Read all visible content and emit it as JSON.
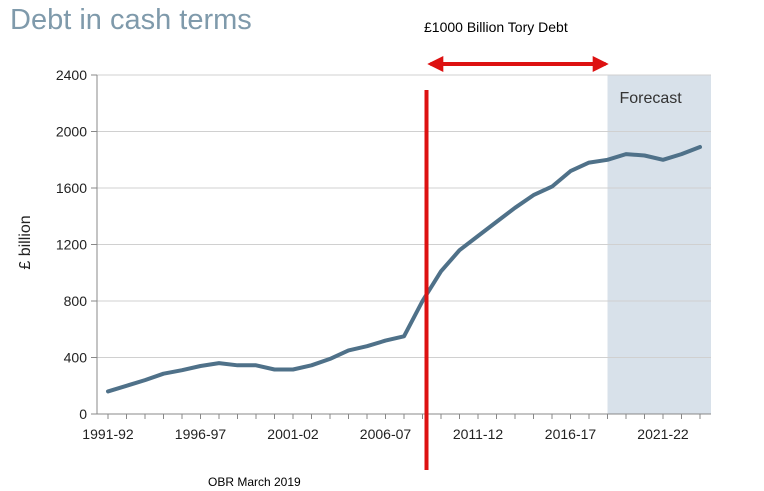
{
  "header": {
    "title": "Debt in cash terms"
  },
  "annotation": {
    "arrow_label": "£1000 Billion Tory Debt"
  },
  "footer": {
    "source": "OBR March 2019"
  },
  "colors": {
    "line": "#4f7189",
    "forecast_band": "#d8e1ea",
    "marker": "#dd1111",
    "title": "#7f9aab"
  },
  "chart_data": {
    "type": "line",
    "title": "Debt in cash terms",
    "xlabel": "",
    "ylabel": "£ billion",
    "ylim": [
      0,
      2400
    ],
    "yticks": [
      0,
      400,
      800,
      1200,
      1600,
      2000,
      2400
    ],
    "xtick_labels": [
      "1991-92",
      "1996-97",
      "2001-02",
      "2006-07",
      "2011-12",
      "2016-17",
      "2021-22"
    ],
    "grid": true,
    "forecast_label": "Forecast",
    "forecast_start": "2018-19",
    "marker_line_at": "2008-09",
    "categories": [
      "1991-92",
      "1992-93",
      "1993-94",
      "1994-95",
      "1995-96",
      "1996-97",
      "1997-98",
      "1998-99",
      "1999-00",
      "2000-01",
      "2001-02",
      "2002-03",
      "2003-04",
      "2004-05",
      "2005-06",
      "2006-07",
      "2007-08",
      "2008-09",
      "2009-10",
      "2010-11",
      "2011-12",
      "2012-13",
      "2013-14",
      "2014-15",
      "2015-16",
      "2016-17",
      "2017-18",
      "2018-19",
      "2019-20",
      "2020-21",
      "2021-22",
      "2022-23",
      "2023-24"
    ],
    "series": [
      {
        "values": [
          160,
          200,
          240,
          285,
          310,
          340,
          360,
          345,
          345,
          315,
          315,
          345,
          390,
          450,
          480,
          520,
          550,
          800,
          1010,
          1160,
          1260,
          1360,
          1460,
          1550,
          1610,
          1720,
          1780,
          1800,
          1840,
          1830,
          1800,
          1840,
          1890
        ]
      }
    ]
  }
}
